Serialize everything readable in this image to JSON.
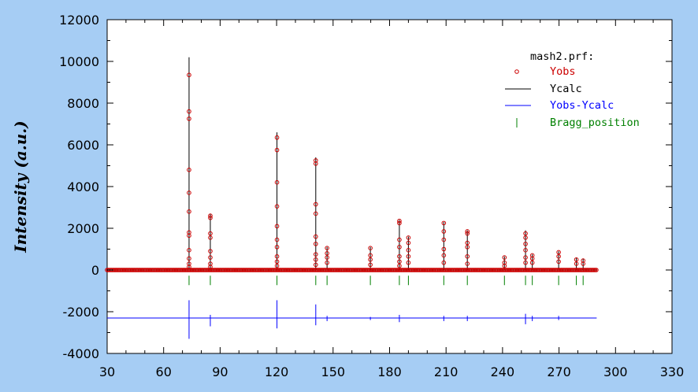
{
  "chart_data": {
    "type": "line",
    "ylabel": "Intensity (a.u.)",
    "xlabel": "",
    "xlim": [
      30,
      330
    ],
    "ylim": [
      -4000,
      12000
    ],
    "x_ticks": [
      30,
      60,
      90,
      120,
      150,
      180,
      210,
      240,
      270,
      300,
      330
    ],
    "y_ticks": [
      -4000,
      -2000,
      0,
      2000,
      4000,
      6000,
      8000,
      10000,
      12000
    ],
    "legend": {
      "title": "mash2.prf:",
      "position": "top-right",
      "entries": [
        {
          "label": "Yobs",
          "color": "#cc0000",
          "marker": "circle"
        },
        {
          "label": "Ycalc",
          "color": "#000000",
          "marker": "line"
        },
        {
          "label": "Yobs-Ycalc",
          "color": "#0000ff",
          "marker": "line"
        },
        {
          "label": "Bragg_position",
          "color": "#008000",
          "marker": "tick"
        }
      ]
    },
    "x_range": [
      30,
      290
    ],
    "background": 0,
    "difference_offset": -2300,
    "bragg_level": -500,
    "peaks": [
      {
        "x": 73.5,
        "ycalc": 10200,
        "yobs": [
          9350,
          7600,
          7250,
          4800,
          3700,
          2800,
          1800,
          1650,
          950,
          550,
          300,
          150
        ]
      },
      {
        "x": 84.8,
        "ycalc": 2700,
        "yobs": [
          2600,
          2500,
          1750,
          1550,
          900,
          600,
          300,
          150
        ]
      },
      {
        "x": 120.2,
        "ycalc": 6600,
        "yobs": [
          6350,
          5750,
          4200,
          3050,
          2100,
          1450,
          1100,
          650,
          400,
          200
        ]
      },
      {
        "x": 140.8,
        "ycalc": 5400,
        "yobs": [
          5250,
          5100,
          3150,
          2700,
          1600,
          1250,
          750,
          500,
          250
        ]
      },
      {
        "x": 146.8,
        "ycalc": 1100,
        "yobs": [
          1050,
          800,
          600,
          350
        ]
      },
      {
        "x": 169.8,
        "ycalc": 1100,
        "yobs": [
          1050,
          700,
          500,
          250
        ]
      },
      {
        "x": 185.2,
        "ycalc": 2400,
        "yobs": [
          2350,
          2250,
          1450,
          1100,
          650,
          400,
          200
        ]
      },
      {
        "x": 190.0,
        "ycalc": 1600,
        "yobs": [
          1550,
          1300,
          950,
          650,
          350
        ]
      },
      {
        "x": 208.8,
        "ycalc": 2300,
        "yobs": [
          2250,
          1850,
          1450,
          1000,
          700,
          350
        ]
      },
      {
        "x": 221.3,
        "ycalc": 1900,
        "yobs": [
          1850,
          1750,
          1300,
          1100,
          650,
          300
        ]
      },
      {
        "x": 241.0,
        "ycalc": 650,
        "yobs": [
          600,
          350,
          200
        ]
      },
      {
        "x": 252.2,
        "ycalc": 1900,
        "yobs": [
          1750,
          1550,
          1250,
          950,
          600,
          350
        ]
      },
      {
        "x": 255.8,
        "ycalc": 750,
        "yobs": [
          700,
          550,
          350
        ]
      },
      {
        "x": 269.8,
        "ycalc": 900,
        "yobs": [
          850,
          650,
          400
        ]
      },
      {
        "x": 279.2,
        "ycalc": 600,
        "yobs": [
          500,
          300
        ]
      },
      {
        "x": 282.8,
        "ycalc": 550,
        "yobs": [
          450,
          300
        ]
      }
    ],
    "bragg_positions": [
      73.5,
      84.8,
      120.2,
      140.8,
      146.8,
      169.8,
      185.2,
      190.0,
      208.8,
      221.3,
      241.0,
      252.2,
      255.8,
      269.8,
      279.2,
      282.8
    ],
    "difference_spikes": [
      {
        "x": 73.5,
        "high": -1450,
        "low": -3300
      },
      {
        "x": 84.8,
        "high": -2150,
        "low": -2700
      },
      {
        "x": 120.2,
        "high": -1450,
        "low": -2800
      },
      {
        "x": 140.8,
        "high": -1650,
        "low": -2650
      },
      {
        "x": 146.8,
        "high": -2200,
        "low": -2450
      },
      {
        "x": 169.8,
        "high": -2250,
        "low": -2400
      },
      {
        "x": 185.2,
        "high": -2150,
        "low": -2500
      },
      {
        "x": 208.8,
        "high": -2200,
        "low": -2450
      },
      {
        "x": 221.3,
        "high": -2200,
        "low": -2450
      },
      {
        "x": 252.2,
        "high": -2100,
        "low": -2600
      },
      {
        "x": 255.8,
        "high": -2200,
        "low": -2450
      },
      {
        "x": 269.8,
        "high": -2200,
        "low": -2400
      }
    ]
  }
}
